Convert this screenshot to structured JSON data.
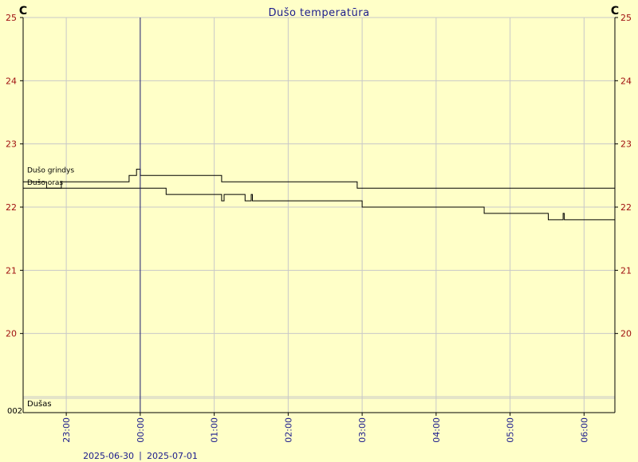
{
  "chart_data": {
    "type": "line",
    "title": "Dušo temperatūra",
    "y_unit_left": "C",
    "y_unit_right": "C",
    "ylim": [
      19,
      25
    ],
    "y_ticks": [
      20,
      21,
      22,
      23,
      24,
      25
    ],
    "x_range": [
      "2025-06-30 22:25",
      "2025-07-01 06:25"
    ],
    "x_ticks": [
      "23:00",
      "00:00",
      "01:00",
      "02:00",
      "03:00",
      "04:00",
      "05:00",
      "06:00"
    ],
    "date_left": "2025-06-30",
    "date_right": "2025-07-01",
    "midnight_marker": "00:00",
    "bottom_panel": {
      "label": "Dušas",
      "value_label": "002"
    },
    "grid": true,
    "series": [
      {
        "name": "Dušo grindys",
        "points": [
          [
            "22:25",
            22.4
          ],
          [
            "22:43",
            22.4
          ],
          [
            "22:44",
            22.3
          ],
          [
            "22:55",
            22.3
          ],
          [
            "22:56",
            22.4
          ],
          [
            "23:50",
            22.4
          ],
          [
            "23:51",
            22.5
          ],
          [
            "23:56",
            22.5
          ],
          [
            "23:57",
            22.6
          ],
          [
            "23:59",
            22.6
          ],
          [
            "00:00",
            22.5
          ],
          [
            "01:05",
            22.5
          ],
          [
            "01:06",
            22.4
          ],
          [
            "02:55",
            22.4
          ],
          [
            "02:56",
            22.3
          ],
          [
            "06:25",
            22.3
          ]
        ]
      },
      {
        "name": "Dušo oras",
        "points": [
          [
            "22:25",
            22.3
          ],
          [
            "00:20",
            22.3
          ],
          [
            "00:21",
            22.2
          ],
          [
            "00:40",
            22.2
          ],
          [
            "00:41",
            22.2
          ],
          [
            "01:05",
            22.2
          ],
          [
            "01:06",
            22.1
          ],
          [
            "01:08",
            22.2
          ],
          [
            "01:20",
            22.2
          ],
          [
            "01:25",
            22.1
          ],
          [
            "01:30",
            22.2
          ],
          [
            "01:31",
            22.1
          ],
          [
            "02:59",
            22.1
          ],
          [
            "03:00",
            22.0
          ],
          [
            "03:10",
            22.0
          ],
          [
            "04:38",
            22.0
          ],
          [
            "04:39",
            21.9
          ],
          [
            "05:30",
            21.9
          ],
          [
            "05:31",
            21.8
          ],
          [
            "05:43",
            21.9
          ],
          [
            "05:44",
            21.8
          ],
          [
            "06:25",
            21.8
          ]
        ]
      }
    ]
  }
}
